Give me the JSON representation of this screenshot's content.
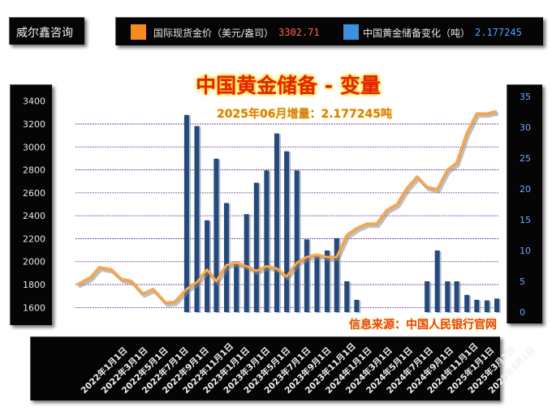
{
  "brand": "威尔鑫咨询",
  "legend": [
    {
      "name": "国际现货金价（美元/盎司）",
      "value": "3302.71",
      "color": "#f58a1f",
      "value_color": "#ff6a50"
    },
    {
      "name": "中国黄金储备变化（吨）",
      "value": "2.177245",
      "color": "#3d8fe0",
      "value_color": "#5aa0ff"
    }
  ],
  "chart_data": {
    "type": "bar+line",
    "title": "中国黄金储备 - 变量",
    "subtitle": "2025年06月增量：2.177245吨",
    "annotation": "信息来源：中国人民银行官网",
    "x_tick_labels": [
      "2022年1月1日",
      "2022年3月1日",
      "2022年5月1日",
      "2022年7月1日",
      "2022年9月1日",
      "2022年11月1日",
      "2023年1月1日",
      "2023年3月1日",
      "2023年5月1日",
      "2023年7月1日",
      "2023年9月1日",
      "2023年11月1日",
      "2024年1月1日",
      "2024年3月1日",
      "2024年5月1日",
      "2024年7月1日",
      "2024年9月1日",
      "2024年11月1日",
      "2025年1月1日",
      "2025年3月1日",
      "2025年5月1日"
    ],
    "x_range": [
      "2022-01-01",
      "2025-06-30"
    ],
    "left_axis": {
      "ticks": [
        1600,
        1800,
        2000,
        2200,
        2400,
        2600,
        2800,
        3000,
        3200,
        3400
      ],
      "ylim": [
        1560,
        3440
      ]
    },
    "right_axis": {
      "ticks": [
        0,
        5,
        10,
        15,
        20,
        25,
        30,
        35
      ],
      "ylim": [
        0,
        35
      ]
    },
    "grid": true,
    "bar_series": {
      "name": "中国黄金储备变化（吨）",
      "axis": "right",
      "color": "#24497c",
      "points": [
        {
          "x": "2022-11-30",
          "y": 32.0
        },
        {
          "x": "2022-12-31",
          "y": 30.2
        },
        {
          "x": "2023-01-31",
          "y": 14.9
        },
        {
          "x": "2023-02-28",
          "y": 24.9
        },
        {
          "x": "2023-03-31",
          "y": 17.7
        },
        {
          "x": "2023-04-30",
          "y": 8.0
        },
        {
          "x": "2023-05-31",
          "y": 15.9
        },
        {
          "x": "2023-06-30",
          "y": 21.0
        },
        {
          "x": "2023-07-31",
          "y": 23.0
        },
        {
          "x": "2023-08-31",
          "y": 29.0
        },
        {
          "x": "2023-09-30",
          "y": 26.1
        },
        {
          "x": "2023-10-31",
          "y": 23.0
        },
        {
          "x": "2023-11-30",
          "y": 11.8
        },
        {
          "x": "2023-12-31",
          "y": 9.0
        },
        {
          "x": "2024-01-31",
          "y": 10.0
        },
        {
          "x": "2024-02-29",
          "y": 12.0
        },
        {
          "x": "2024-03-31",
          "y": 5.0
        },
        {
          "x": "2024-04-30",
          "y": 2.0
        },
        {
          "x": "2024-11-30",
          "y": 5.0
        },
        {
          "x": "2024-12-31",
          "y": 10.0
        },
        {
          "x": "2025-01-31",
          "y": 5.0
        },
        {
          "x": "2025-02-28",
          "y": 5.0
        },
        {
          "x": "2025-03-31",
          "y": 2.8
        },
        {
          "x": "2025-04-30",
          "y": 2.0
        },
        {
          "x": "2025-05-31",
          "y": 1.9
        },
        {
          "x": "2025-06-30",
          "y": 2.2
        }
      ]
    },
    "line_series": {
      "name": "国际现货金价（美元/盎司）",
      "axis": "left",
      "color": "#f58a1f",
      "points": [
        {
          "x": "2022-01-01",
          "y": 1800
        },
        {
          "x": "2022-02-10",
          "y": 1860
        },
        {
          "x": "2022-03-10",
          "y": 1950
        },
        {
          "x": "2022-04-15",
          "y": 1930
        },
        {
          "x": "2022-05-15",
          "y": 1850
        },
        {
          "x": "2022-06-15",
          "y": 1830
        },
        {
          "x": "2022-07-20",
          "y": 1720
        },
        {
          "x": "2022-08-20",
          "y": 1760
        },
        {
          "x": "2022-09-28",
          "y": 1640
        },
        {
          "x": "2022-10-25",
          "y": 1650
        },
        {
          "x": "2022-11-30",
          "y": 1760
        },
        {
          "x": "2022-12-31",
          "y": 1820
        },
        {
          "x": "2023-01-31",
          "y": 1930
        },
        {
          "x": "2023-02-28",
          "y": 1830
        },
        {
          "x": "2023-03-31",
          "y": 1970
        },
        {
          "x": "2023-04-30",
          "y": 1990
        },
        {
          "x": "2023-05-31",
          "y": 1960
        },
        {
          "x": "2023-06-30",
          "y": 1920
        },
        {
          "x": "2023-07-31",
          "y": 1960
        },
        {
          "x": "2023-08-31",
          "y": 1940
        },
        {
          "x": "2023-09-30",
          "y": 1870
        },
        {
          "x": "2023-10-31",
          "y": 1990
        },
        {
          "x": "2023-11-30",
          "y": 2040
        },
        {
          "x": "2023-12-31",
          "y": 2060
        },
        {
          "x": "2024-01-31",
          "y": 2040
        },
        {
          "x": "2024-02-29",
          "y": 2040
        },
        {
          "x": "2024-03-31",
          "y": 2230
        },
        {
          "x": "2024-04-30",
          "y": 2290
        },
        {
          "x": "2024-05-31",
          "y": 2330
        },
        {
          "x": "2024-06-30",
          "y": 2330
        },
        {
          "x": "2024-07-31",
          "y": 2450
        },
        {
          "x": "2024-08-31",
          "y": 2500
        },
        {
          "x": "2024-09-30",
          "y": 2640
        },
        {
          "x": "2024-10-31",
          "y": 2740
        },
        {
          "x": "2024-11-30",
          "y": 2650
        },
        {
          "x": "2024-12-31",
          "y": 2630
        },
        {
          "x": "2025-01-31",
          "y": 2800
        },
        {
          "x": "2025-02-28",
          "y": 2860
        },
        {
          "x": "2025-03-31",
          "y": 3120
        },
        {
          "x": "2025-04-30",
          "y": 3290
        },
        {
          "x": "2025-05-31",
          "y": 3290
        },
        {
          "x": "2025-06-30",
          "y": 3310
        }
      ]
    }
  }
}
